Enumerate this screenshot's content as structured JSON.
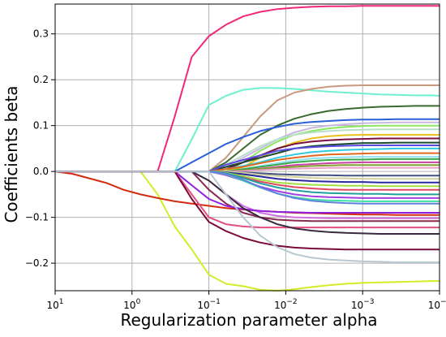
{
  "chart_data": {
    "type": "line",
    "title": "",
    "xlabel": "Regularization parameter alpha",
    "ylabel": "Coefficients beta",
    "x_scale": "log",
    "x_inverted": true,
    "xlim": [
      10,
      0.0001
    ],
    "ylim": [
      -0.26,
      0.365
    ],
    "grid": true,
    "legend": "none",
    "x_ticks": [
      {
        "value": 10,
        "base": "10",
        "exp": "1"
      },
      {
        "value": 1,
        "base": "10",
        "exp": "0"
      },
      {
        "value": 0.1,
        "base": "10",
        "exp": "−1"
      },
      {
        "value": 0.01,
        "base": "10",
        "exp": "−2"
      },
      {
        "value": 0.001,
        "base": "10",
        "exp": "−3"
      },
      {
        "value": 0.0001,
        "base": "10",
        "exp": "−4"
      }
    ],
    "y_ticks": [
      {
        "value": 0.3,
        "label": "0.3"
      },
      {
        "value": 0.2,
        "label": "0.2"
      },
      {
        "value": 0.1,
        "label": "0.1"
      },
      {
        "value": 0.0,
        "label": "0.0"
      },
      {
        "value": -0.1,
        "label": "−0.1"
      },
      {
        "value": -0.2,
        "label": "−0.2"
      }
    ],
    "x": [
      10,
      5.99,
      3.59,
      2.15,
      1.29,
      0.774,
      0.464,
      0.278,
      0.167,
      0.1,
      0.0599,
      0.0359,
      0.0215,
      0.0129,
      0.00774,
      0.00464,
      0.00278,
      0.00167,
      0.001,
      0.000599,
      0.000359,
      0.000215,
      0.000129,
      0.0001
    ],
    "series": [
      {
        "color": "#f0287a",
        "values": [
          0,
          0,
          0,
          0,
          0,
          0,
          0,
          0.12,
          0.25,
          0.295,
          0.32,
          0.338,
          0.348,
          0.354,
          0.357,
          0.359,
          0.36,
          0.36,
          0.361,
          0.361,
          0.361,
          0.361,
          0.361,
          0.361
        ]
      },
      {
        "color": "#d4ec28",
        "values": [
          0,
          0,
          0,
          0,
          0,
          0,
          -0.05,
          -0.12,
          -0.17,
          -0.225,
          -0.245,
          -0.25,
          -0.258,
          -0.26,
          -0.257,
          -0.252,
          -0.248,
          -0.245,
          -0.243,
          -0.242,
          -0.241,
          -0.24,
          -0.239,
          -0.239
        ]
      },
      {
        "color": "#d42a0e",
        "values": [
          0,
          -0.005,
          -0.015,
          -0.025,
          -0.04,
          -0.05,
          -0.058,
          -0.065,
          -0.07,
          -0.075,
          -0.08,
          -0.083,
          -0.086,
          -0.088,
          -0.09,
          -0.091,
          -0.092,
          -0.093,
          -0.094,
          -0.094,
          -0.095,
          -0.095,
          -0.095,
          -0.095
        ]
      },
      {
        "color": "#6ff0d0",
        "values": [
          0,
          0,
          0,
          0,
          0,
          0,
          0,
          0,
          0.07,
          0.145,
          0.165,
          0.178,
          0.182,
          0.182,
          0.18,
          0.177,
          0.174,
          0.172,
          0.17,
          0.168,
          0.167,
          0.166,
          0.166,
          0.165
        ]
      },
      {
        "color": "#c89a80",
        "values": [
          0,
          0,
          0,
          0,
          0,
          0,
          0,
          0,
          0,
          0,
          0.03,
          0.075,
          0.12,
          0.155,
          0.172,
          0.18,
          0.185,
          0.187,
          0.188,
          0.188,
          0.188,
          0.188,
          0.188,
          0.188
        ]
      },
      {
        "color": "#3a6a2e",
        "values": [
          0,
          0,
          0,
          0,
          0,
          0,
          0,
          0,
          0,
          0,
          0.02,
          0.05,
          0.08,
          0.1,
          0.115,
          0.125,
          0.132,
          0.136,
          0.139,
          0.141,
          0.142,
          0.143,
          0.143,
          0.143
        ]
      },
      {
        "color": "#2a5fd8",
        "values": [
          0,
          0,
          0,
          0,
          0,
          0,
          0,
          0,
          0.02,
          0.04,
          0.06,
          0.075,
          0.088,
          0.097,
          0.104,
          0.108,
          0.11,
          0.112,
          0.113,
          0.113,
          0.114,
          0.114,
          0.114,
          0.114
        ]
      },
      {
        "color": "#c8b8e0",
        "values": [
          0,
          0,
          0,
          0,
          0,
          0,
          0,
          0,
          0,
          0,
          0.01,
          0.03,
          0.05,
          0.07,
          0.085,
          0.095,
          0.1,
          0.103,
          0.105,
          0.106,
          0.107,
          0.107,
          0.107,
          0.107
        ]
      },
      {
        "color": "#8ae860",
        "values": [
          0,
          0,
          0,
          0,
          0,
          0,
          0,
          0,
          0,
          0,
          0,
          0.02,
          0.045,
          0.065,
          0.08,
          0.088,
          0.094,
          0.097,
          0.099,
          0.1,
          0.1,
          0.1,
          0.1,
          0.1
        ]
      },
      {
        "color": "#b8e0c8",
        "values": [
          0,
          0,
          0,
          0,
          0,
          0,
          0,
          0,
          0,
          0,
          0.015,
          0.035,
          0.055,
          0.07,
          0.08,
          0.085,
          0.088,
          0.09,
          0.091,
          0.092,
          0.092,
          0.092,
          0.092,
          0.092
        ]
      },
      {
        "color": "#e8c020",
        "values": [
          0,
          0,
          0,
          0,
          0,
          0,
          0,
          0,
          0,
          0,
          0,
          0.01,
          0.03,
          0.05,
          0.063,
          0.072,
          0.077,
          0.079,
          0.08,
          0.08,
          0.08,
          0.08,
          0.08,
          0.08
        ]
      },
      {
        "color": "#7a1040",
        "values": [
          0,
          0,
          0,
          0,
          0,
          0,
          0,
          0,
          0,
          0,
          0.005,
          0.02,
          0.035,
          0.05,
          0.06,
          0.065,
          0.068,
          0.07,
          0.071,
          0.072,
          0.072,
          0.072,
          0.072,
          0.072
        ]
      },
      {
        "color": "#1a4a30",
        "values": [
          0,
          0,
          0,
          0,
          0,
          0,
          0,
          0,
          0,
          0,
          0.01,
          0.02,
          0.03,
          0.04,
          0.05,
          0.055,
          0.058,
          0.06,
          0.062,
          0.062,
          0.063,
          0.063,
          0.063,
          0.063
        ]
      },
      {
        "color": "#5a4ae0",
        "values": [
          0,
          0,
          0,
          0,
          0,
          0,
          0,
          0,
          0,
          0,
          0.015,
          0.025,
          0.035,
          0.045,
          0.05,
          0.053,
          0.055,
          0.056,
          0.057,
          0.057,
          0.057,
          0.057,
          0.057,
          0.057
        ]
      },
      {
        "color": "#30c8e0",
        "values": [
          0,
          0,
          0,
          0,
          0,
          0,
          0,
          0,
          0,
          0,
          0.005,
          0.012,
          0.02,
          0.03,
          0.037,
          0.042,
          0.045,
          0.047,
          0.048,
          0.049,
          0.05,
          0.05,
          0.05,
          0.05
        ]
      },
      {
        "color": "#e06a20",
        "values": [
          0,
          0,
          0,
          0,
          0,
          0,
          0,
          0,
          0,
          0,
          0.005,
          0.01,
          0.018,
          0.025,
          0.03,
          0.034,
          0.037,
          0.038,
          0.039,
          0.04,
          0.04,
          0.04,
          0.04,
          0.04
        ]
      },
      {
        "color": "#90e0f0",
        "values": [
          0,
          0,
          0,
          0,
          0,
          0,
          0,
          0,
          0,
          0,
          0,
          0.005,
          0.012,
          0.018,
          0.024,
          0.028,
          0.03,
          0.031,
          0.032,
          0.032,
          0.032,
          0.032,
          0.032,
          0.032
        ]
      },
      {
        "color": "#3aa848",
        "values": [
          0,
          0,
          0,
          0,
          0,
          0,
          0,
          0,
          0,
          0,
          0,
          0.005,
          0.01,
          0.015,
          0.02,
          0.023,
          0.025,
          0.026,
          0.026,
          0.027,
          0.027,
          0.027,
          0.027,
          0.027
        ]
      },
      {
        "color": "#c840a0",
        "values": [
          0,
          0,
          0,
          0,
          0,
          0,
          0,
          0,
          0,
          0,
          0,
          0.002,
          0.006,
          0.01,
          0.014,
          0.016,
          0.018,
          0.019,
          0.02,
          0.02,
          0.02,
          0.02,
          0.02,
          0.02
        ]
      },
      {
        "color": "#80a030",
        "values": [
          0,
          0,
          0,
          0,
          0,
          0,
          0,
          0,
          0,
          0,
          0,
          0.002,
          0.005,
          0.008,
          0.01,
          0.012,
          0.013,
          0.014,
          0.014,
          0.014,
          0.014,
          0.014,
          0.014,
          0.014
        ]
      },
      {
        "color": "#e8a0c8",
        "values": [
          0,
          0,
          0,
          0,
          0,
          0,
          0,
          0,
          0,
          0,
          0,
          0.001,
          0.003,
          0.005,
          0.006,
          0.007,
          0.008,
          0.008,
          0.008,
          0.008,
          0.008,
          0.008,
          0.008,
          0.008
        ]
      },
      {
        "color": "#405080",
        "values": [
          0,
          0,
          0,
          0,
          0,
          0,
          0,
          0,
          0,
          0,
          0,
          -0.002,
          -0.004,
          -0.006,
          -0.007,
          -0.008,
          -0.008,
          -0.009,
          -0.009,
          -0.009,
          -0.009,
          -0.009,
          -0.009,
          -0.009
        ]
      },
      {
        "color": "#d0d0a0",
        "values": [
          0,
          0,
          0,
          0,
          0,
          0,
          0,
          0,
          0,
          0,
          0,
          -0.003,
          -0.007,
          -0.01,
          -0.012,
          -0.014,
          -0.015,
          -0.015,
          -0.016,
          -0.016,
          -0.016,
          -0.016,
          -0.016,
          -0.016
        ]
      },
      {
        "color": "#2a2aa0",
        "values": [
          0,
          0,
          0,
          0,
          0,
          0,
          0,
          0,
          0,
          0,
          -0.002,
          -0.006,
          -0.011,
          -0.016,
          -0.019,
          -0.021,
          -0.022,
          -0.023,
          -0.023,
          -0.024,
          -0.024,
          -0.024,
          -0.024,
          -0.024
        ]
      },
      {
        "color": "#a0e040",
        "values": [
          0,
          0,
          0,
          0,
          0,
          0,
          0,
          0,
          0,
          0,
          -0.003,
          -0.01,
          -0.018,
          -0.024,
          -0.027,
          -0.029,
          -0.03,
          -0.031,
          -0.031,
          -0.032,
          -0.032,
          -0.032,
          -0.032,
          -0.032
        ]
      },
      {
        "color": "#e04860",
        "values": [
          0,
          0,
          0,
          0,
          0,
          0,
          0,
          0,
          0,
          0,
          -0.005,
          -0.013,
          -0.022,
          -0.029,
          -0.034,
          -0.037,
          -0.039,
          -0.04,
          -0.04,
          -0.04,
          -0.04,
          -0.04,
          -0.04,
          -0.04
        ]
      },
      {
        "color": "#20a0a0",
        "values": [
          0,
          0,
          0,
          0,
          0,
          0,
          0,
          0,
          0,
          0,
          -0.004,
          -0.014,
          -0.026,
          -0.035,
          -0.041,
          -0.045,
          -0.047,
          -0.048,
          -0.049,
          -0.049,
          -0.05,
          -0.05,
          -0.05,
          -0.05
        ]
      },
      {
        "color": "#a040e0",
        "values": [
          0,
          0,
          0,
          0,
          0,
          0,
          0,
          0,
          0,
          0,
          -0.008,
          -0.02,
          -0.033,
          -0.043,
          -0.05,
          -0.054,
          -0.056,
          -0.057,
          -0.058,
          -0.058,
          -0.058,
          -0.058,
          -0.058,
          -0.058
        ]
      },
      {
        "color": "#40e0a0",
        "values": [
          0,
          0,
          0,
          0,
          0,
          0,
          0,
          0,
          0,
          0,
          -0.006,
          -0.02,
          -0.035,
          -0.048,
          -0.056,
          -0.061,
          -0.063,
          -0.064,
          -0.065,
          -0.065,
          -0.065,
          -0.065,
          -0.065,
          -0.065
        ]
      },
      {
        "color": "#6080e0",
        "values": [
          0,
          0,
          0,
          0,
          0,
          0,
          0,
          0,
          0,
          0,
          -0.005,
          -0.018,
          -0.034,
          -0.048,
          -0.058,
          -0.064,
          -0.067,
          -0.069,
          -0.07,
          -0.07,
          -0.07,
          -0.07,
          -0.07,
          -0.07
        ]
      },
      {
        "color": "#8a2a50",
        "values": [
          0,
          0,
          0,
          0,
          0,
          0,
          0,
          0,
          0,
          -0.04,
          -0.07,
          -0.09,
          -0.1,
          -0.105,
          -0.107,
          -0.108,
          -0.108,
          -0.108,
          -0.108,
          -0.108,
          -0.108,
          -0.108,
          -0.108,
          -0.108
        ]
      },
      {
        "color": "#d070e0",
        "values": [
          0,
          0,
          0,
          0,
          0,
          0,
          0,
          0,
          0,
          -0.02,
          -0.05,
          -0.075,
          -0.09,
          -0.097,
          -0.1,
          -0.101,
          -0.102,
          -0.102,
          -0.102,
          -0.102,
          -0.102,
          -0.102,
          -0.102,
          -0.102
        ]
      },
      {
        "color": "#9020e0",
        "values": [
          0,
          0,
          0,
          0,
          0,
          0,
          0,
          0,
          -0.03,
          -0.06,
          -0.075,
          -0.082,
          -0.086,
          -0.088,
          -0.089,
          -0.09,
          -0.09,
          -0.09,
          -0.09,
          -0.09,
          -0.09,
          -0.09,
          -0.09,
          -0.09
        ]
      },
      {
        "color": "#e05080",
        "values": [
          0,
          0,
          0,
          0,
          0,
          0,
          0,
          0,
          -0.05,
          -0.1,
          -0.115,
          -0.12,
          -0.122,
          -0.122,
          -0.122,
          -0.122,
          -0.122,
          -0.122,
          -0.122,
          -0.122,
          -0.122,
          -0.122,
          -0.122,
          -0.122
        ]
      },
      {
        "color": "#3a2a40",
        "values": [
          0,
          0,
          0,
          0,
          0,
          0,
          0,
          0,
          0,
          -0.02,
          -0.05,
          -0.08,
          -0.1,
          -0.115,
          -0.124,
          -0.129,
          -0.132,
          -0.134,
          -0.135,
          -0.136,
          -0.136,
          -0.136,
          -0.136,
          -0.136
        ]
      },
      {
        "color": "#7a0a3a",
        "values": [
          0,
          0,
          0,
          0,
          0,
          0,
          0,
          0,
          -0.06,
          -0.11,
          -0.13,
          -0.145,
          -0.155,
          -0.162,
          -0.166,
          -0.168,
          -0.169,
          -0.17,
          -0.17,
          -0.17,
          -0.17,
          -0.17,
          -0.17,
          -0.17
        ]
      },
      {
        "color": "#b8c8d0",
        "values": [
          0,
          0,
          0,
          0,
          0,
          0,
          0,
          0,
          0,
          0,
          -0.05,
          -0.1,
          -0.14,
          -0.165,
          -0.18,
          -0.188,
          -0.192,
          -0.194,
          -0.196,
          -0.197,
          -0.198,
          -0.198,
          -0.198,
          -0.198
        ]
      }
    ]
  }
}
